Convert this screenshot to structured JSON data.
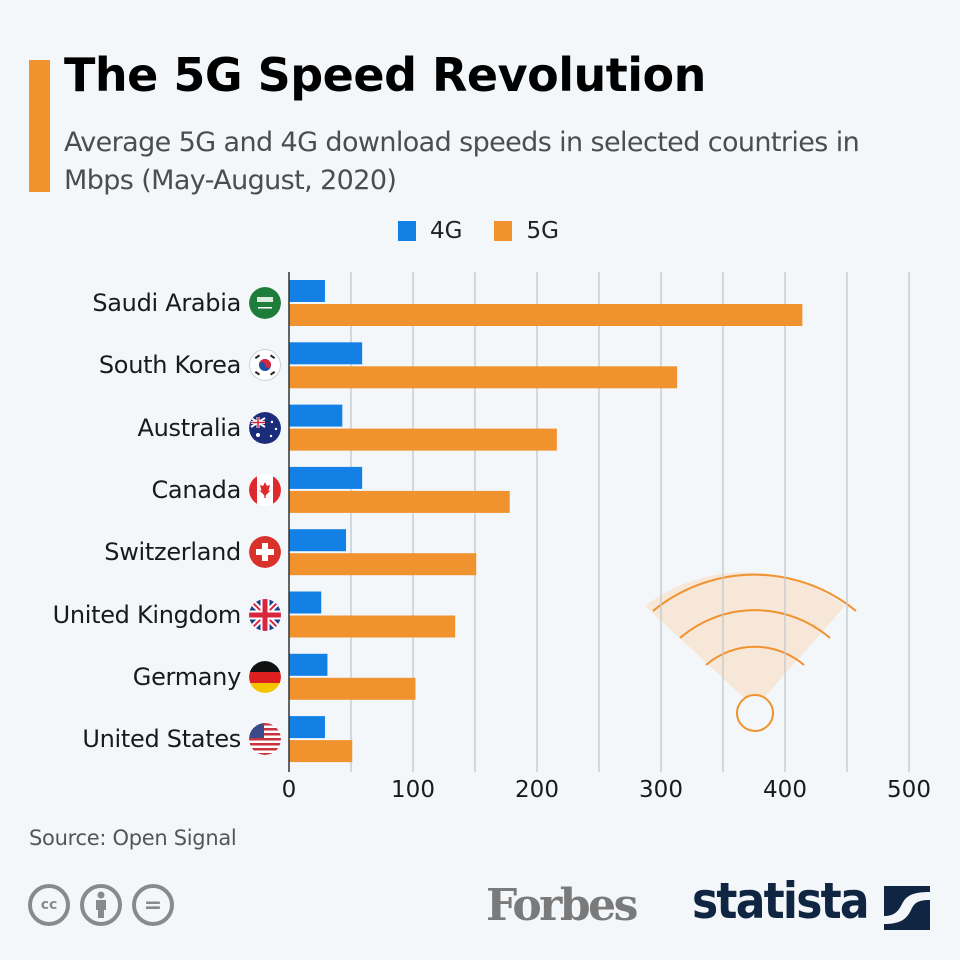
{
  "header": {
    "title": "The 5G Speed Revolution",
    "subtitle": "Average 5G and 4G download speeds in selected countries in Mbps (May-August, 2020)"
  },
  "legend": [
    {
      "label": "4G",
      "color": "#1380e5"
    },
    {
      "label": "5G",
      "color": "#f0922e"
    }
  ],
  "countries": [
    {
      "name": "Saudi Arabia",
      "flag": "saudi-arabia-flag-icon"
    },
    {
      "name": "South Korea",
      "flag": "south-korea-flag-icon"
    },
    {
      "name": "Australia",
      "flag": "australia-flag-icon"
    },
    {
      "name": "Canada",
      "flag": "canada-flag-icon"
    },
    {
      "name": "Switzerland",
      "flag": "switzerland-flag-icon"
    },
    {
      "name": "United Kingdom",
      "flag": "united-kingdom-flag-icon"
    },
    {
      "name": "Germany",
      "flag": "germany-flag-icon"
    },
    {
      "name": "United States",
      "flag": "united-states-flag-icon"
    }
  ],
  "chart_data": {
    "type": "bar",
    "orientation": "horizontal",
    "title": "The 5G Speed Revolution",
    "subtitle": "Average 5G and 4G download speeds in selected countries in Mbps (May-August, 2020)",
    "categories": [
      "Saudi Arabia",
      "South Korea",
      "Australia",
      "Canada",
      "Switzerland",
      "United Kingdom",
      "Germany",
      "United States"
    ],
    "series": [
      {
        "name": "4G",
        "color": "#1380e5",
        "values": [
          29,
          59,
          43,
          59,
          46,
          26,
          31,
          29
        ]
      },
      {
        "name": "5G",
        "color": "#f0922e",
        "values": [
          414,
          313,
          216,
          178,
          151,
          134,
          102,
          51
        ]
      }
    ],
    "xlabel": "",
    "ylabel": "",
    "xlim": [
      0,
      500
    ],
    "xticks": [
      "0",
      "100",
      "200",
      "300",
      "400",
      "500"
    ],
    "grid_step": 50,
    "grid": true,
    "legend_position": "top-center",
    "unit": "Mbps"
  },
  "footer": {
    "source": "Source: Open Signal",
    "cc_icons": [
      "cc-icon",
      "attribution-icon",
      "no-derivatives-icon"
    ],
    "cc_text": "cc",
    "nd_text": "=",
    "forbes": "Forbes",
    "statista": "statista"
  }
}
